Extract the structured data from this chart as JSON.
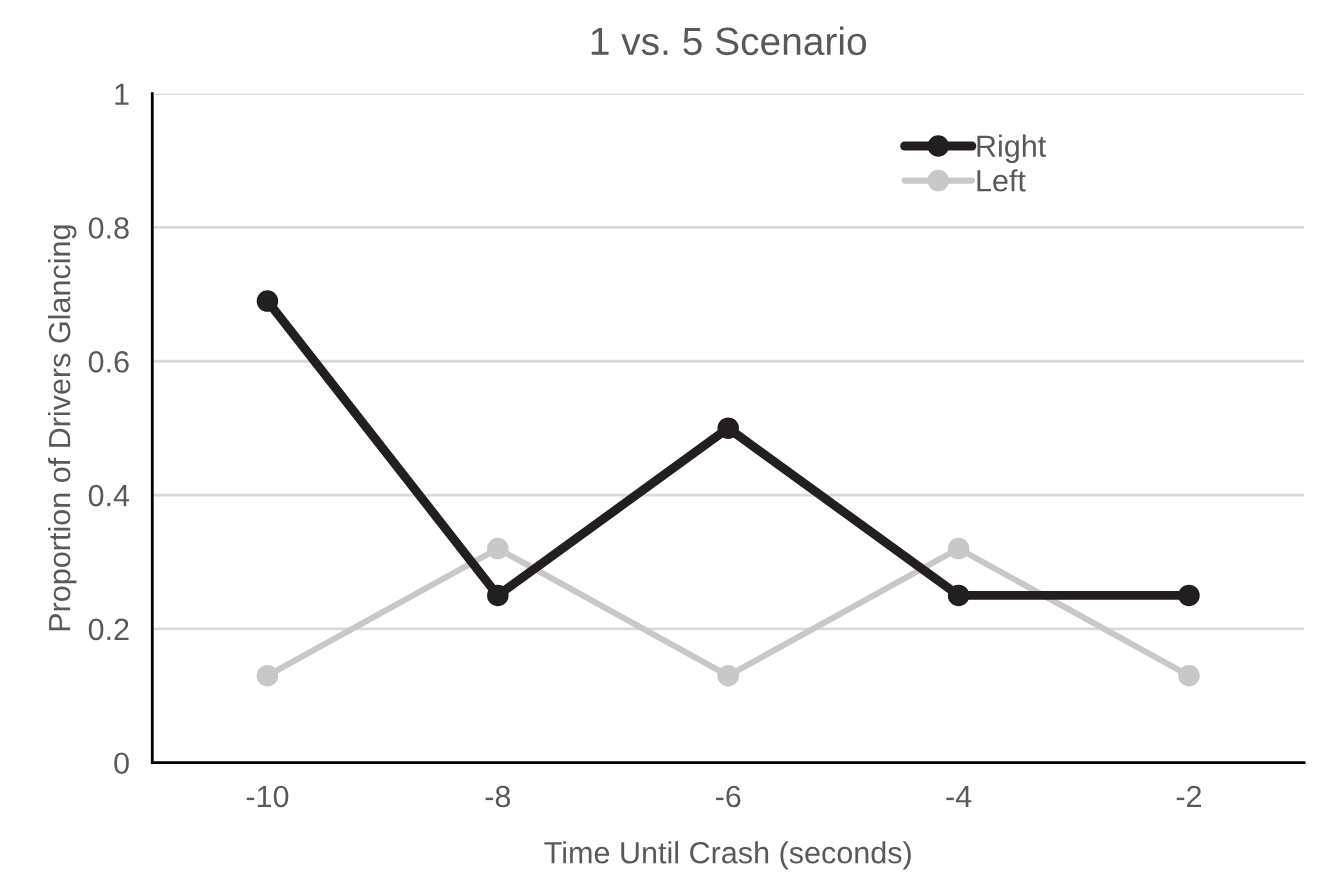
{
  "chart_data": {
    "type": "line",
    "title": "1 vs. 5 Scenario",
    "xlabel": "Time Until Crash (seconds)",
    "ylabel": "Proportion of Drivers Glancing",
    "categories": [
      "-10",
      "-8",
      "-6",
      "-4",
      "-2"
    ],
    "series": [
      {
        "name": "Right",
        "color": "#231f20",
        "values": [
          0.69,
          0.25,
          0.5,
          0.25,
          0.25
        ]
      },
      {
        "name": "Left",
        "color": "#c8c8c8",
        "values": [
          0.13,
          0.32,
          0.13,
          0.32,
          0.13
        ]
      }
    ],
    "ylim": [
      0,
      1
    ],
    "yticks": [
      0,
      0.2,
      0.4,
      0.6,
      0.8,
      1
    ],
    "grid": "y",
    "legend": "top right",
    "marker": "circle",
    "line_style": "solid"
  }
}
